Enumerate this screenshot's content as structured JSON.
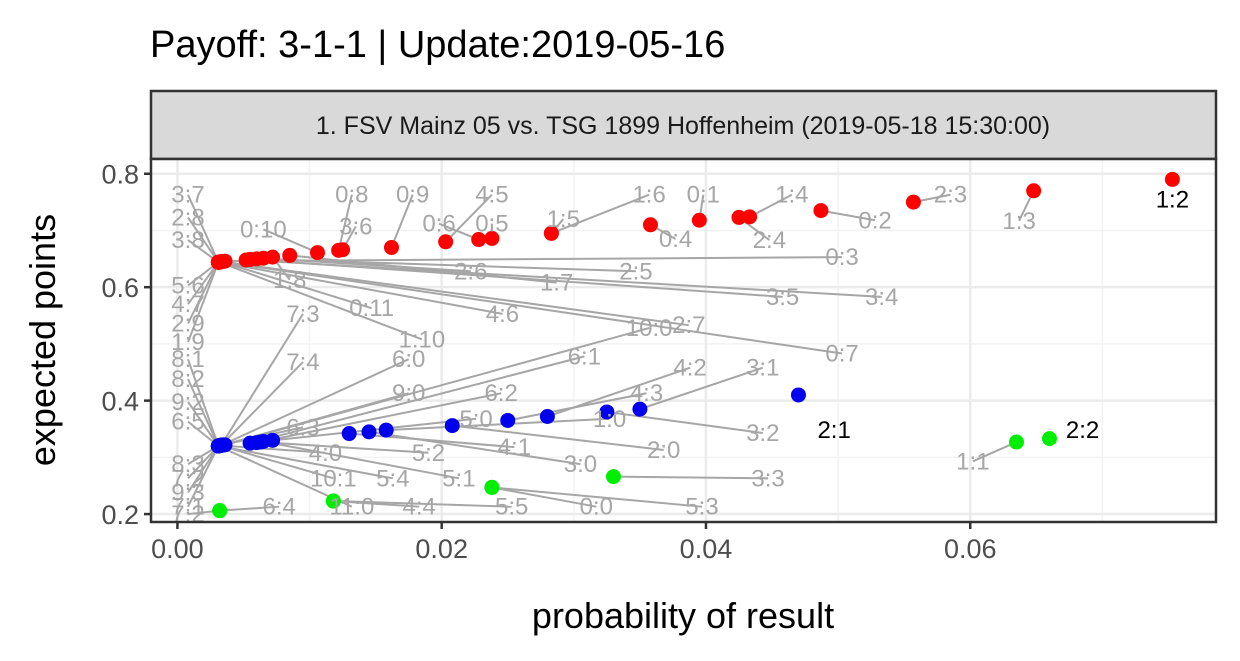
{
  "chart_data": {
    "type": "scatter",
    "title": "Payoff: 3-1-1 | Update:2019-05-16",
    "facet_label": "1. FSV Mainz 05 vs. TSG 1899 Hoffenheim (2019-05-18 15:30:00)",
    "xlabel": "probability of result",
    "ylabel": "expected points",
    "xlim": [
      -0.002,
      0.0786
    ],
    "ylim": [
      0.186,
      0.826
    ],
    "x_ticks": [
      0,
      0.02,
      0.04,
      0.06
    ],
    "x_tick_labels": [
      "0.00",
      "0.02",
      "0.04",
      "0.06"
    ],
    "y_ticks": [
      0.2,
      0.4,
      0.6,
      0.8
    ],
    "y_tick_labels": [
      "0.2",
      "0.4",
      "0.6",
      "0.8"
    ],
    "grid": true,
    "legend": "none",
    "colors": {
      "away_win": "#ff0000",
      "home_win": "#0000ee",
      "draw": "#00ee00",
      "label_highlight": "#000000",
      "label_muted": "#a6a6a6",
      "segment": "#a6a6a6"
    },
    "points": [
      {
        "result": "1:2",
        "x": 0.0753,
        "y": 0.79,
        "group": "away_win",
        "lx": 0.0753,
        "ly": 0.755,
        "highlight": true
      },
      {
        "result": "1:3",
        "x": 0.0648,
        "y": 0.77,
        "group": "away_win",
        "lx": 0.0637,
        "ly": 0.717
      },
      {
        "result": "2:3",
        "x": 0.0557,
        "y": 0.75,
        "group": "away_win",
        "lx": 0.0585,
        "ly": 0.763
      },
      {
        "result": "0:2",
        "x": 0.0487,
        "y": 0.735,
        "group": "away_win",
        "lx": 0.0528,
        "ly": 0.718
      },
      {
        "result": "1:4",
        "x": 0.0433,
        "y": 0.724,
        "group": "away_win",
        "lx": 0.0465,
        "ly": 0.763
      },
      {
        "result": "2:4",
        "x": 0.0425,
        "y": 0.723,
        "group": "away_win",
        "lx": 0.0448,
        "ly": 0.683
      },
      {
        "result": "0:1",
        "x": 0.0395,
        "y": 0.718,
        "group": "away_win",
        "lx": 0.0398,
        "ly": 0.763
      },
      {
        "result": "0:4",
        "x": 0.0358,
        "y": 0.71,
        "group": "away_win",
        "lx": 0.0377,
        "ly": 0.685
      },
      {
        "result": "1:6",
        "x": 0.0283,
        "y": 0.695,
        "group": "away_win",
        "lx": 0.0357,
        "ly": 0.763
      },
      {
        "result": "1:5",
        "x": 0.0283,
        "y": 0.695,
        "group": "away_win",
        "lx": 0.0292,
        "ly": 0.72
      },
      {
        "result": "0:5",
        "x": 0.0238,
        "y": 0.686,
        "group": "away_win",
        "lx": 0.0238,
        "ly": 0.712
      },
      {
        "result": "0:6",
        "x": 0.0228,
        "y": 0.684,
        "group": "away_win",
        "lx": 0.0198,
        "ly": 0.712
      },
      {
        "result": "4:5",
        "x": 0.0203,
        "y": 0.68,
        "group": "away_win",
        "lx": 0.0238,
        "ly": 0.763
      },
      {
        "result": "0:9",
        "x": 0.0162,
        "y": 0.67,
        "group": "away_win",
        "lx": 0.0178,
        "ly": 0.763
      },
      {
        "result": "3:6",
        "x": 0.0125,
        "y": 0.666,
        "group": "away_win",
        "lx": 0.0135,
        "ly": 0.707
      },
      {
        "result": "0:8",
        "x": 0.0122,
        "y": 0.665,
        "group": "away_win",
        "lx": 0.0132,
        "ly": 0.763
      },
      {
        "result": "0:10",
        "x": 0.0106,
        "y": 0.661,
        "group": "away_win",
        "lx": 0.0065,
        "ly": 0.702
      },
      {
        "result": "1:7",
        "x": 0.0085,
        "y": 0.656,
        "group": "away_win",
        "lx": 0.0287,
        "ly": 0.608
      },
      {
        "result": "1:8",
        "x": 0.0072,
        "y": 0.653,
        "group": "away_win",
        "lx": 0.0085,
        "ly": 0.613
      },
      {
        "result": "2:6",
        "x": 0.0065,
        "y": 0.651,
        "group": "away_win",
        "lx": 0.0222,
        "ly": 0.628
      },
      {
        "result": "2:5",
        "x": 0.006,
        "y": 0.65,
        "group": "away_win",
        "lx": 0.0347,
        "ly": 0.628
      },
      {
        "result": "3:5",
        "x": 0.0055,
        "y": 0.649,
        "group": "away_win",
        "lx": 0.0458,
        "ly": 0.583
      },
      {
        "result": "3:4",
        "x": 0.0052,
        "y": 0.648,
        "group": "away_win",
        "lx": 0.0533,
        "ly": 0.583
      },
      {
        "result": "0:3",
        "x": 0.0036,
        "y": 0.646,
        "group": "away_win",
        "lx": 0.0503,
        "ly": 0.653
      },
      {
        "result": "2:7",
        "x": 0.0034,
        "y": 0.645,
        "group": "away_win",
        "lx": 0.0387,
        "ly": 0.533
      },
      {
        "result": "0:7",
        "x": 0.0033,
        "y": 0.645,
        "group": "away_win",
        "lx": 0.0503,
        "ly": 0.483
      },
      {
        "result": "0:11",
        "x": 0.0033,
        "y": 0.645,
        "group": "away_win",
        "lx": 0.0147,
        "ly": 0.563
      },
      {
        "result": "4:6",
        "x": 0.0032,
        "y": 0.644,
        "group": "away_win",
        "lx": 0.0246,
        "ly": 0.553
      },
      {
        "result": "1:10",
        "x": 0.0032,
        "y": 0.644,
        "group": "away_win",
        "lx": 0.0185,
        "ly": 0.508
      },
      {
        "result": "3:7",
        "x": 0.0031,
        "y": 0.644,
        "group": "away_win",
        "lx": 0.0008,
        "ly": 0.763
      },
      {
        "result": "2:8",
        "x": 0.0031,
        "y": 0.644,
        "group": "away_win",
        "lx": 0.0008,
        "ly": 0.723
      },
      {
        "result": "3:8",
        "x": 0.0031,
        "y": 0.644,
        "group": "away_win",
        "lx": 0.0008,
        "ly": 0.683
      },
      {
        "result": "5:6",
        "x": 0.0031,
        "y": 0.644,
        "group": "away_win",
        "lx": 0.0008,
        "ly": 0.603
      },
      {
        "result": "4:7",
        "x": 0.0031,
        "y": 0.644,
        "group": "away_win",
        "lx": 0.0008,
        "ly": 0.57
      },
      {
        "result": "2:9",
        "x": 0.0031,
        "y": 0.644,
        "group": "away_win",
        "lx": 0.0008,
        "ly": 0.536
      },
      {
        "result": "1:9",
        "x": 0.0031,
        "y": 0.644,
        "group": "away_win",
        "lx": 0.0008,
        "ly": 0.503
      },
      {
        "result": "2:1",
        "x": 0.047,
        "y": 0.41,
        "group": "home_win",
        "lx": 0.0497,
        "ly": 0.348,
        "highlight": true
      },
      {
        "result": "3:1",
        "x": 0.035,
        "y": 0.385,
        "group": "home_win",
        "lx": 0.0443,
        "ly": 0.458
      },
      {
        "result": "3:2",
        "x": 0.0325,
        "y": 0.38,
        "group": "home_win",
        "lx": 0.0443,
        "ly": 0.343
      },
      {
        "result": "4:2",
        "x": 0.028,
        "y": 0.372,
        "group": "home_win",
        "lx": 0.0388,
        "ly": 0.458
      },
      {
        "result": "4:3",
        "x": 0.025,
        "y": 0.365,
        "group": "home_win",
        "lx": 0.0355,
        "ly": 0.413
      },
      {
        "result": "2:0",
        "x": 0.0208,
        "y": 0.356,
        "group": "home_win",
        "lx": 0.0368,
        "ly": 0.313
      },
      {
        "result": "1:0",
        "x": 0.0158,
        "y": 0.348,
        "group": "home_win",
        "lx": 0.0327,
        "ly": 0.368
      },
      {
        "result": "3:0",
        "x": 0.0145,
        "y": 0.345,
        "group": "home_win",
        "lx": 0.0305,
        "ly": 0.288
      },
      {
        "result": "4:1",
        "x": 0.013,
        "y": 0.342,
        "group": "home_win",
        "lx": 0.0255,
        "ly": 0.318
      },
      {
        "result": "5:0",
        "x": 0.0072,
        "y": 0.33,
        "group": "home_win",
        "lx": 0.0226,
        "ly": 0.368
      },
      {
        "result": "5:1",
        "x": 0.0065,
        "y": 0.328,
        "group": "home_win",
        "lx": 0.0213,
        "ly": 0.263
      },
      {
        "result": "5:2",
        "x": 0.0063,
        "y": 0.327,
        "group": "home_win",
        "lx": 0.019,
        "ly": 0.308
      },
      {
        "result": "6:2",
        "x": 0.006,
        "y": 0.326,
        "group": "home_win",
        "lx": 0.0245,
        "ly": 0.413
      },
      {
        "result": "6:1",
        "x": 0.0055,
        "y": 0.325,
        "group": "home_win",
        "lx": 0.0308,
        "ly": 0.478
      },
      {
        "result": "10:0",
        "x": 0.0036,
        "y": 0.322,
        "group": "home_win",
        "lx": 0.0357,
        "ly": 0.528
      },
      {
        "result": "9:0",
        "x": 0.0035,
        "y": 0.322,
        "group": "home_win",
        "lx": 0.0175,
        "ly": 0.413
      },
      {
        "result": "6:0",
        "x": 0.0034,
        "y": 0.322,
        "group": "home_win",
        "lx": 0.0175,
        "ly": 0.473
      },
      {
        "result": "7:3",
        "x": 0.0033,
        "y": 0.321,
        "group": "home_win",
        "lx": 0.0095,
        "ly": 0.553
      },
      {
        "result": "7:4",
        "x": 0.0033,
        "y": 0.321,
        "group": "home_win",
        "lx": 0.0095,
        "ly": 0.468
      },
      {
        "result": "6:3",
        "x": 0.0033,
        "y": 0.321,
        "group": "home_win",
        "lx": 0.0095,
        "ly": 0.353
      },
      {
        "result": "4:0",
        "x": 0.0032,
        "y": 0.321,
        "group": "home_win",
        "lx": 0.0112,
        "ly": 0.308
      },
      {
        "result": "10:1",
        "x": 0.0032,
        "y": 0.321,
        "group": "home_win",
        "lx": 0.0118,
        "ly": 0.263
      },
      {
        "result": "5:4",
        "x": 0.0031,
        "y": 0.32,
        "group": "home_win",
        "lx": 0.0163,
        "ly": 0.263
      },
      {
        "result": "11:0",
        "x": 0.0031,
        "y": 0.32,
        "group": "home_win",
        "lx": 0.0132,
        "ly": 0.213
      },
      {
        "result": "8:1",
        "x": 0.0031,
        "y": 0.32,
        "group": "home_win",
        "lx": 0.0008,
        "ly": 0.473
      },
      {
        "result": "8:2",
        "x": 0.0031,
        "y": 0.32,
        "group": "home_win",
        "lx": 0.0008,
        "ly": 0.438
      },
      {
        "result": "9:2",
        "x": 0.0031,
        "y": 0.32,
        "group": "home_win",
        "lx": 0.0008,
        "ly": 0.398
      },
      {
        "result": "6:5",
        "x": 0.0031,
        "y": 0.32,
        "group": "home_win",
        "lx": 0.0008,
        "ly": 0.363
      },
      {
        "result": "8:3",
        "x": 0.0031,
        "y": 0.32,
        "group": "home_win",
        "lx": 0.0008,
        "ly": 0.288
      },
      {
        "result": "7:2",
        "x": 0.0031,
        "y": 0.32,
        "group": "home_win",
        "lx": 0.0008,
        "ly": 0.263
      },
      {
        "result": "9:3",
        "x": 0.0031,
        "y": 0.32,
        "group": "home_win",
        "lx": 0.0008,
        "ly": 0.238
      },
      {
        "result": "7:1",
        "x": 0.0031,
        "y": 0.32,
        "group": "home_win",
        "lx": 0.0008,
        "ly": 0.213
      },
      {
        "result": "2:2",
        "x": 0.066,
        "y": 0.333,
        "group": "draw",
        "lx": 0.0685,
        "ly": 0.348,
        "highlight": true
      },
      {
        "result": "1:1",
        "x": 0.0635,
        "y": 0.327,
        "group": "draw",
        "lx": 0.0602,
        "ly": 0.293
      },
      {
        "result": "3:3",
        "x": 0.033,
        "y": 0.266,
        "group": "draw",
        "lx": 0.0447,
        "ly": 0.263
      },
      {
        "result": "0:0",
        "x": 0.0238,
        "y": 0.247,
        "group": "draw",
        "lx": 0.0317,
        "ly": 0.213
      },
      {
        "result": "5:3",
        "x": 0.0238,
        "y": 0.247,
        "group": "draw",
        "lx": 0.0397,
        "ly": 0.213
      },
      {
        "result": "5:5",
        "x": 0.0118,
        "y": 0.223,
        "group": "draw",
        "lx": 0.0253,
        "ly": 0.213
      },
      {
        "result": "4:4",
        "x": 0.0118,
        "y": 0.223,
        "group": "draw",
        "lx": 0.0183,
        "ly": 0.213
      },
      {
        "result": "6:4",
        "x": 0.0032,
        "y": 0.206,
        "group": "draw",
        "lx": 0.0077,
        "ly": 0.213
      },
      {
        "result": "7:2",
        "x": 0.0032,
        "y": 0.206,
        "group": "draw",
        "lx": 0.0008,
        "ly": 0.2
      }
    ]
  }
}
